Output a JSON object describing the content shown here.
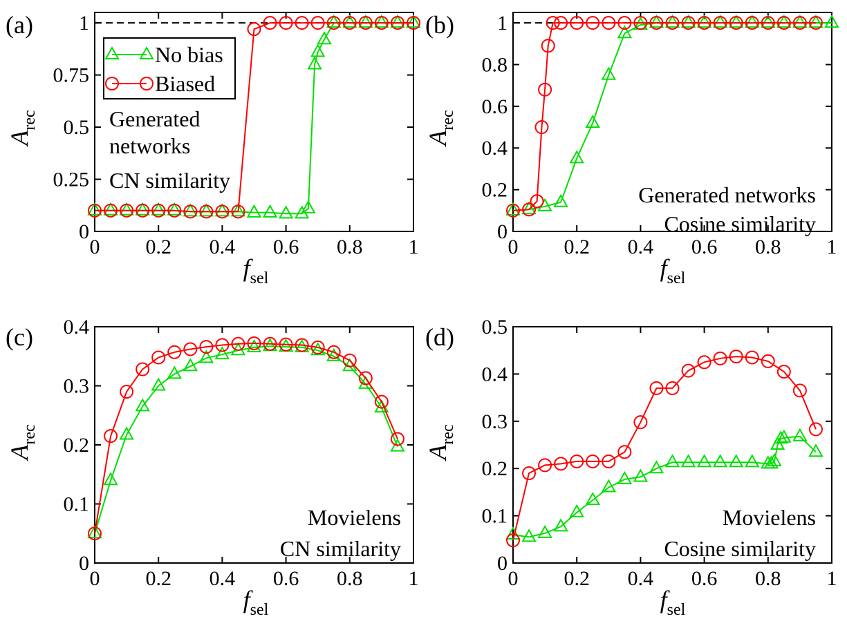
{
  "chart_data": [
    {
      "panel_label": "(a)",
      "type": "line",
      "xlabel": "f",
      "xlabel_sub": "sel",
      "ylabel": "A",
      "ylabel_sub": "rec",
      "xlim": [
        0,
        1
      ],
      "ylim": [
        0,
        1.05
      ],
      "xticks": [
        0,
        0.2,
        0.4,
        0.6,
        0.8,
        1
      ],
      "xtick_labels": [
        "0",
        "0.2",
        "0.4",
        "0.6",
        "0.8",
        "1"
      ],
      "yticks": [
        0,
        0.25,
        0.5,
        0.75,
        1
      ],
      "ytick_labels": [
        "0",
        "0.25",
        "0.5",
        "0.75",
        "1"
      ],
      "reference_line": 1,
      "annotations": [
        "Generated",
        "networks",
        "CN similarity"
      ],
      "legend": [
        {
          "name": "No bias",
          "color": "#00e000",
          "marker": "triangle"
        },
        {
          "name": "Biased",
          "color": "#ff0000",
          "marker": "circle"
        }
      ],
      "series": [
        {
          "name": "No bias",
          "color": "#00e000",
          "marker": "triangle",
          "x": [
            0,
            0.05,
            0.1,
            0.15,
            0.2,
            0.25,
            0.3,
            0.35,
            0.4,
            0.45,
            0.5,
            0.55,
            0.6,
            0.65,
            0.67,
            0.69,
            0.7,
            0.72,
            0.75,
            0.8,
            0.85,
            0.9,
            0.95,
            1.0
          ],
          "y": [
            0.1,
            0.1,
            0.1,
            0.1,
            0.1,
            0.1,
            0.095,
            0.095,
            0.095,
            0.095,
            0.09,
            0.09,
            0.085,
            0.085,
            0.11,
            0.8,
            0.86,
            0.92,
            1.0,
            1.0,
            1.0,
            1.0,
            1.0,
            1.0
          ]
        },
        {
          "name": "Biased",
          "color": "#ff0000",
          "marker": "circle",
          "x": [
            0,
            0.05,
            0.1,
            0.15,
            0.2,
            0.25,
            0.3,
            0.35,
            0.4,
            0.45,
            0.5,
            0.55,
            0.6,
            0.65,
            0.7,
            0.75,
            0.8,
            0.85,
            0.9,
            0.95,
            1.0
          ],
          "y": [
            0.1,
            0.1,
            0.1,
            0.1,
            0.1,
            0.1,
            0.095,
            0.095,
            0.095,
            0.095,
            0.97,
            1.0,
            1.0,
            1.0,
            1.0,
            1.0,
            1.0,
            1.0,
            1.0,
            1.0,
            1.0
          ]
        }
      ]
    },
    {
      "panel_label": "(b)",
      "type": "line",
      "xlabel": "f",
      "xlabel_sub": "sel",
      "ylabel": "A",
      "ylabel_sub": "rec",
      "xlim": [
        0,
        1
      ],
      "ylim": [
        0,
        1.05
      ],
      "xticks": [
        0,
        0.2,
        0.4,
        0.6,
        0.8,
        1
      ],
      "xtick_labels": [
        "0",
        "0.2",
        "0.4",
        "0.6",
        "0.8",
        "1"
      ],
      "yticks": [
        0,
        0.2,
        0.4,
        0.6,
        0.8,
        1
      ],
      "ytick_labels": [
        "0",
        "0.2",
        "0.4",
        "0.6",
        "0.8",
        "1"
      ],
      "reference_line": 1,
      "annotations": [
        "Generated networks",
        "Cosine similarity"
      ],
      "series": [
        {
          "name": "No bias",
          "color": "#00e000",
          "marker": "triangle",
          "x": [
            0,
            0.05,
            0.1,
            0.15,
            0.2,
            0.25,
            0.3,
            0.35,
            0.4,
            0.45,
            0.5,
            0.55,
            0.6,
            0.65,
            0.7,
            0.75,
            0.8,
            0.85,
            0.9,
            0.95,
            1.0
          ],
          "y": [
            0.1,
            0.105,
            0.12,
            0.14,
            0.35,
            0.52,
            0.75,
            0.95,
            0.99,
            1.0,
            1.0,
            1.0,
            1.0,
            1.0,
            1.0,
            1.0,
            1.0,
            1.0,
            1.0,
            1.0,
            1.0
          ]
        },
        {
          "name": "Biased",
          "color": "#ff0000",
          "marker": "circle",
          "x": [
            0,
            0.05,
            0.075,
            0.09,
            0.1,
            0.11,
            0.125,
            0.15,
            0.2,
            0.25,
            0.3,
            0.35,
            0.4,
            0.45,
            0.5,
            0.55,
            0.6,
            0.65,
            0.7,
            0.75,
            0.8,
            0.85,
            0.9,
            0.95
          ],
          "y": [
            0.1,
            0.105,
            0.145,
            0.5,
            0.68,
            0.89,
            1.0,
            1.0,
            1.0,
            1.0,
            1.0,
            1.0,
            1.0,
            1.0,
            1.0,
            1.0,
            1.0,
            1.0,
            1.0,
            1.0,
            1.0,
            1.0,
            1.0,
            1.0
          ]
        }
      ]
    },
    {
      "panel_label": "(c)",
      "type": "line",
      "xlabel": "f",
      "xlabel_sub": "sel",
      "ylabel": "A",
      "ylabel_sub": "rec",
      "xlim": [
        0,
        1
      ],
      "ylim": [
        0,
        0.4
      ],
      "xticks": [
        0,
        0.2,
        0.4,
        0.6,
        0.8,
        1
      ],
      "xtick_labels": [
        "0",
        "0.2",
        "0.4",
        "0.6",
        "0.8",
        "1"
      ],
      "yticks": [
        0,
        0.1,
        0.2,
        0.3,
        0.4
      ],
      "ytick_labels": [
        "0",
        "0.1",
        "0.2",
        "0.3",
        "0.4"
      ],
      "annotations": [
        "Movielens",
        "CN similarity"
      ],
      "series": [
        {
          "name": "No bias",
          "color": "#00e000",
          "marker": "triangle",
          "x": [
            0,
            0.05,
            0.1,
            0.15,
            0.2,
            0.25,
            0.3,
            0.35,
            0.4,
            0.45,
            0.5,
            0.55,
            0.6,
            0.65,
            0.7,
            0.75,
            0.8,
            0.85,
            0.9,
            0.95
          ],
          "y": [
            0.05,
            0.14,
            0.217,
            0.265,
            0.3,
            0.32,
            0.333,
            0.347,
            0.353,
            0.36,
            0.365,
            0.367,
            0.366,
            0.365,
            0.36,
            0.35,
            0.333,
            0.303,
            0.263,
            0.197
          ]
        },
        {
          "name": "Biased",
          "color": "#ff0000",
          "marker": "circle",
          "x": [
            0,
            0.05,
            0.1,
            0.15,
            0.2,
            0.25,
            0.3,
            0.35,
            0.4,
            0.45,
            0.5,
            0.55,
            0.6,
            0.65,
            0.7,
            0.75,
            0.8,
            0.85,
            0.9,
            0.95
          ],
          "y": [
            0.05,
            0.215,
            0.29,
            0.328,
            0.348,
            0.357,
            0.362,
            0.366,
            0.369,
            0.371,
            0.372,
            0.371,
            0.37,
            0.369,
            0.365,
            0.357,
            0.343,
            0.313,
            0.273,
            0.21
          ]
        }
      ]
    },
    {
      "panel_label": "(d)",
      "type": "line",
      "xlabel": "f",
      "xlabel_sub": "sel",
      "ylabel": "A",
      "ylabel_sub": "rec",
      "xlim": [
        0,
        1
      ],
      "ylim": [
        0,
        0.5
      ],
      "xticks": [
        0,
        0.2,
        0.4,
        0.6,
        0.8,
        1
      ],
      "xtick_labels": [
        "0",
        "0.2",
        "0.4",
        "0.6",
        "0.8",
        "1"
      ],
      "yticks": [
        0,
        0.1,
        0.2,
        0.3,
        0.4,
        0.5
      ],
      "ytick_labels": [
        "0",
        "0.1",
        "0.2",
        "0.3",
        "0.4",
        "0.5"
      ],
      "annotations": [
        "Movielens",
        "Cosine similarity"
      ],
      "series": [
        {
          "name": "No bias",
          "color": "#00e000",
          "marker": "triangle",
          "x": [
            0,
            0.05,
            0.1,
            0.15,
            0.2,
            0.25,
            0.3,
            0.35,
            0.4,
            0.45,
            0.5,
            0.55,
            0.6,
            0.65,
            0.7,
            0.75,
            0.8,
            0.81,
            0.82,
            0.83,
            0.84,
            0.85,
            0.9,
            0.95
          ],
          "y": [
            0.06,
            0.055,
            0.063,
            0.077,
            0.107,
            0.133,
            0.16,
            0.177,
            0.182,
            0.2,
            0.213,
            0.213,
            0.213,
            0.213,
            0.213,
            0.213,
            0.21,
            0.21,
            0.215,
            0.25,
            0.263,
            0.265,
            0.268,
            0.235
          ]
        },
        {
          "name": "Biased",
          "color": "#ff0000",
          "marker": "circle",
          "x": [
            0,
            0.05,
            0.1,
            0.15,
            0.2,
            0.25,
            0.3,
            0.35,
            0.4,
            0.45,
            0.5,
            0.55,
            0.6,
            0.65,
            0.7,
            0.75,
            0.8,
            0.85,
            0.9,
            0.95
          ],
          "y": [
            0.048,
            0.19,
            0.207,
            0.21,
            0.215,
            0.215,
            0.215,
            0.235,
            0.298,
            0.37,
            0.37,
            0.407,
            0.425,
            0.433,
            0.437,
            0.435,
            0.427,
            0.405,
            0.365,
            0.283
          ]
        }
      ]
    }
  ]
}
